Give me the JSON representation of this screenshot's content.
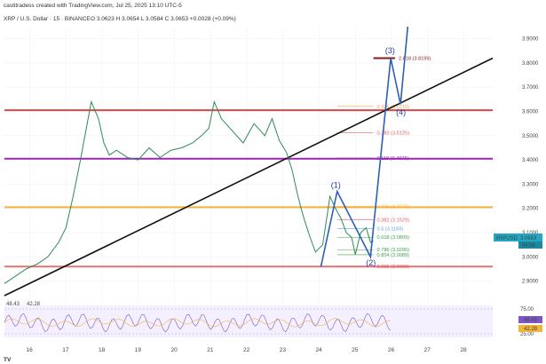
{
  "header": {
    "credit": "castitradess created with TradingView.com, Jul 25, 2025 13:10 UTC-5",
    "symbol": "XRP / U.S. Dollar · 15 · BINANCE",
    "ohlc": "O 3.0623 H 3.0654 L 3.0584 C 3.0653 +0.0028 (+0.09%)"
  },
  "chart_data": {
    "type": "line",
    "title": "XRP / U.S. Dollar · 15 · BINANCE",
    "xlabel": "",
    "ylabel": "",
    "x_ticks": [
      "16",
      "17",
      "18",
      "19",
      "20",
      "21",
      "22",
      "23",
      "24",
      "25",
      "26",
      "27",
      "28"
    ],
    "y_ticks": [
      "2.9000",
      "3.0000",
      "3.1000",
      "3.2000",
      "3.3000",
      "3.4000",
      "3.5000",
      "3.6000",
      "3.7000",
      "3.8000",
      "3.9000"
    ],
    "ylim": [
      2.84,
      3.95
    ],
    "xlim": [
      15.3,
      28.8
    ],
    "grid": true,
    "series": [
      {
        "name": "",
        "x": [
          15.3,
          15.6,
          15.9,
          16.2,
          16.5,
          16.8,
          17.0,
          17.2,
          17.4,
          17.55,
          17.7,
          17.9,
          18.05,
          18.2,
          18.4,
          18.7,
          19.0,
          19.3,
          19.6,
          19.9,
          20.2,
          20.5,
          20.75,
          20.95,
          21.1,
          21.3,
          21.6,
          21.9,
          22.2,
          22.5,
          22.7,
          22.9,
          23.1,
          23.25,
          23.4,
          23.5,
          23.6,
          23.75,
          23.9,
          24.1,
          24.3,
          24.45,
          24.6,
          24.75,
          24.9,
          25.0,
          25.15,
          25.3,
          25.42,
          25.5
        ],
        "values": [
          2.89,
          2.92,
          2.95,
          2.97,
          3.0,
          3.06,
          3.12,
          3.25,
          3.4,
          3.52,
          3.64,
          3.57,
          3.47,
          3.42,
          3.44,
          3.41,
          3.4,
          3.45,
          3.41,
          3.44,
          3.45,
          3.47,
          3.5,
          3.53,
          3.64,
          3.57,
          3.52,
          3.47,
          3.55,
          3.5,
          3.57,
          3.48,
          3.43,
          3.36,
          3.26,
          3.2,
          3.15,
          3.08,
          3.02,
          3.05,
          3.25,
          3.2,
          3.16,
          3.1,
          3.08,
          3.01,
          3.1,
          3.12,
          3.06,
          3.065
        ]
      }
    ],
    "current_price": "3.0653",
    "current_label": "XRPUSD",
    "countdown": "04:56",
    "horizontal_levels": [
      {
        "value": 3.605,
        "color": "#d94a4a"
      },
      {
        "value": 3.405,
        "color": "#9c27b0"
      },
      {
        "value": 3.205,
        "color": "#f2b43a"
      },
      {
        "value": 2.96,
        "color": "#e57373"
      }
    ],
    "fib_levels": [
      {
        "label": "2.618 (3.8199)",
        "value": 3.8199,
        "color": "#8b1a1a"
      },
      {
        "label": "0.336 (3.6210)",
        "value": 3.621,
        "color": "#f0a050"
      },
      {
        "label": "0.382 (3.5125)",
        "value": 3.5125,
        "color": "#e06060"
      },
      {
        "label": "0.118 (3.4076)",
        "value": 3.4076,
        "color": "#9c27b0"
      },
      {
        "label": "0.236 (3.2079)",
        "value": 3.2079,
        "color": "#f2b43a"
      },
      {
        "label": "0.382 (3.1529)",
        "value": 3.1529,
        "color": "#e06060"
      },
      {
        "label": "0.5 (3.1169)",
        "value": 3.1169,
        "color": "#6aa0d8"
      },
      {
        "label": "0.618 (3.0809)",
        "value": 3.0809,
        "color": "#3fa34d"
      },
      {
        "label": "0.786 (3.0296)",
        "value": 3.0296,
        "color": "#3fa34d"
      },
      {
        "label": "0.854 (3.0089)",
        "value": 3.0089,
        "color": "#3fa34d"
      },
      {
        "label": "0.382 (2.9609)",
        "value": 2.9609,
        "color": "#e06060"
      }
    ],
    "trendline": {
      "x": [
        15.3,
        28.8
      ],
      "values": [
        2.84,
        3.82
      ],
      "color": "#111111"
    },
    "wave_path": {
      "x": [
        24.05,
        24.5,
        25.42,
        25.98,
        26.25,
        26.45
      ],
      "values": [
        2.96,
        3.27,
        3.0,
        3.82,
        3.63,
        3.95
      ],
      "color": "#2f5fb3"
    },
    "wave_labels": [
      {
        "label": "(1)",
        "x": 24.45,
        "value": 3.285
      },
      {
        "label": "(2)",
        "x": 25.42,
        "value": 2.965
      },
      {
        "label": "(3)",
        "x": 25.95,
        "value": 3.84
      },
      {
        "label": "(4)",
        "x": 26.25,
        "value": 3.585
      }
    ],
    "rsi": {
      "values_label": [
        "48.43",
        "42.28"
      ],
      "ylim": [
        25,
        75
      ],
      "y_ticks": [
        "75.00",
        "25.00"
      ],
      "current": [
        "48.43",
        "42.28"
      ]
    }
  }
}
